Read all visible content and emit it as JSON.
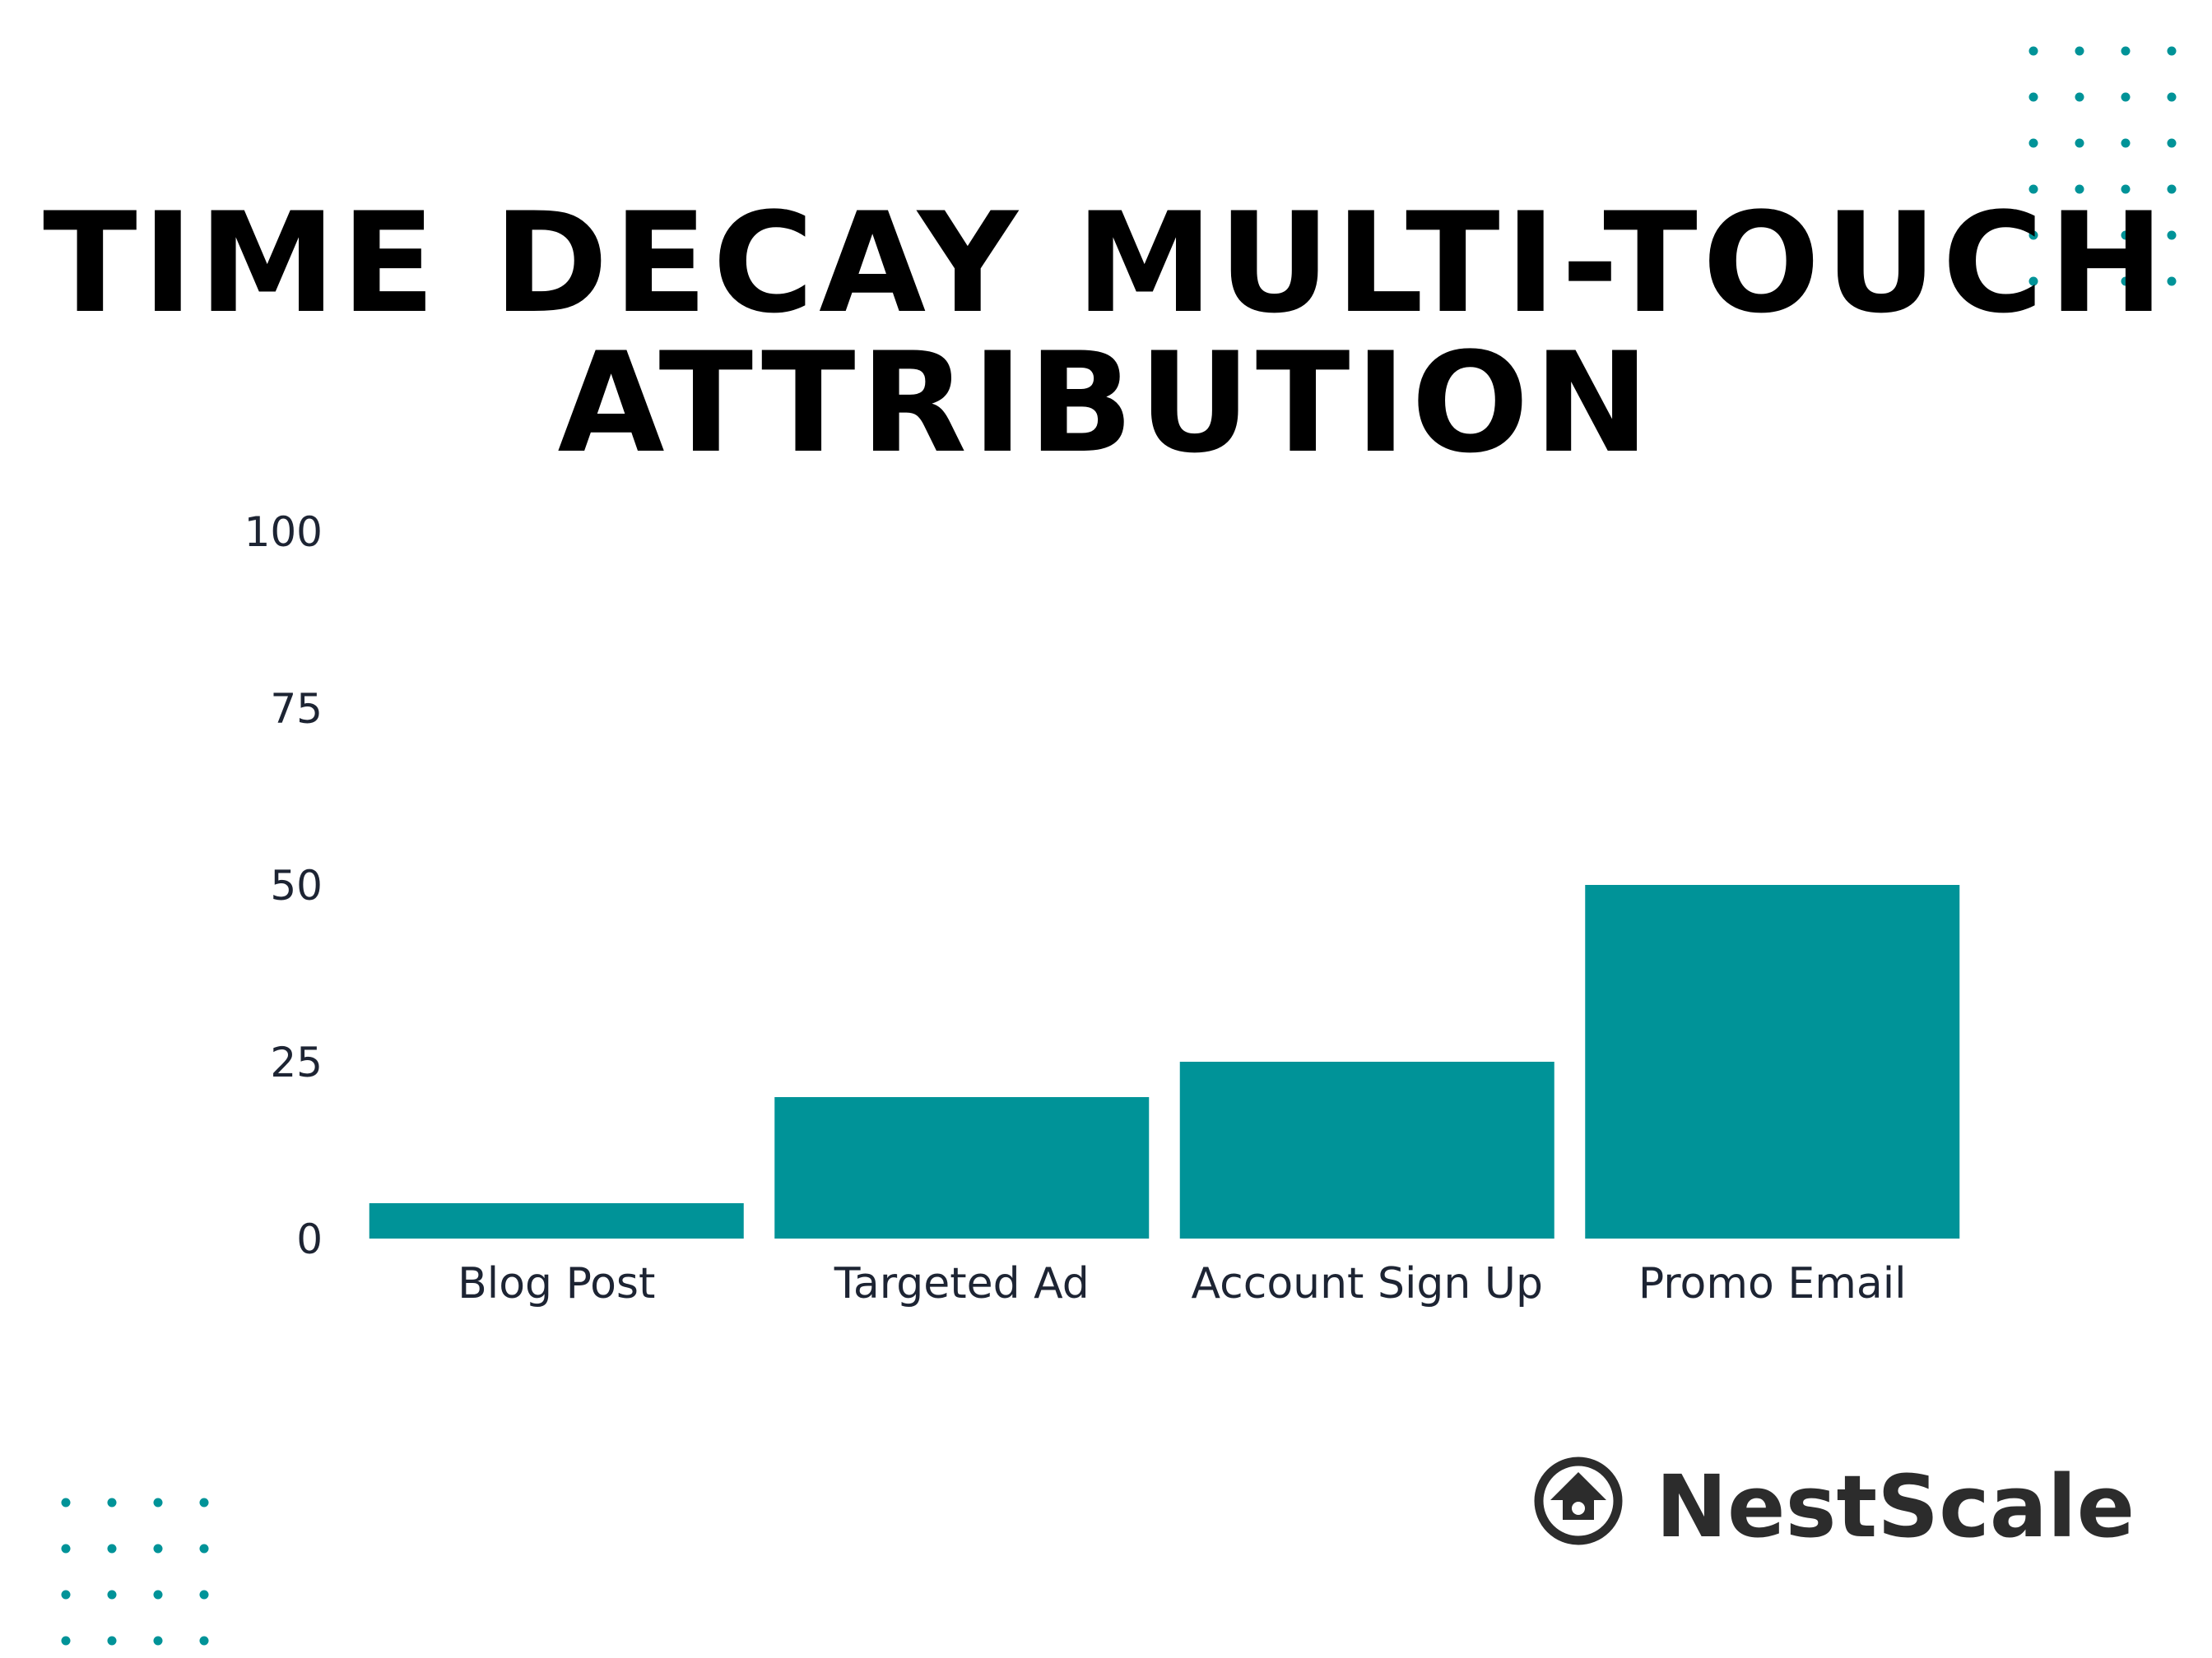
{
  "title_line1": "TIME DECAY MULTI-TOUCH",
  "title_line2": "ATTRIBUTION",
  "chart_data": {
    "type": "bar",
    "categories": [
      "Blog Post",
      "Targeted Ad",
      "Account Sign Up",
      "Promo Email"
    ],
    "values": [
      5,
      20,
      25,
      50
    ],
    "title": "TIME DECAY MULTI-TOUCH ATTRIBUTION",
    "xlabel": "",
    "ylabel": "",
    "ylim": [
      0,
      100
    ],
    "yticks": [
      "0",
      "25",
      "50",
      "75",
      "100"
    ],
    "grid": false,
    "bar_color": "#009398"
  },
  "brand": {
    "name": "NestScale",
    "logo_icon": "nestscale-logo-icon"
  },
  "colors": {
    "accent": "#009398",
    "dots": "#009398",
    "title": "#000000"
  }
}
